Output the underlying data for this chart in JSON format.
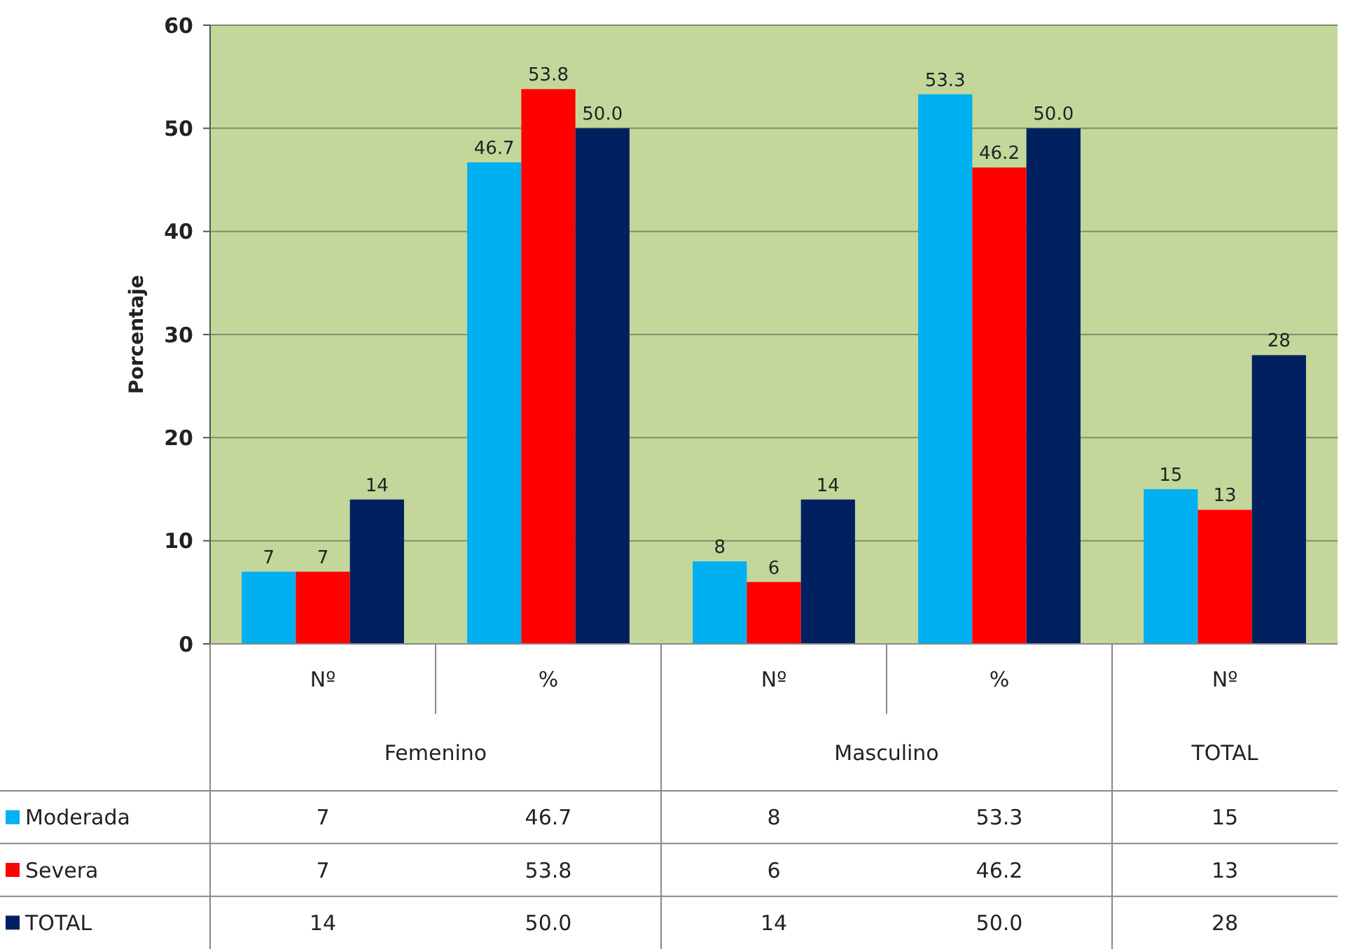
{
  "chart_data": {
    "type": "bar",
    "ylabel": "Porcentaje",
    "categories": [
      "Nº",
      "%",
      "Nº",
      "%",
      "Nº"
    ],
    "annotations": [
      "Femenino",
      "Masculino",
      "TOTAL"
    ],
    "series": [
      {
        "name": "Moderada",
        "color": "#00b0f0",
        "values": [
          7,
          46.7,
          8,
          53.3,
          15
        ],
        "value_labels": [
          "7",
          "46.7",
          "8",
          "53.3",
          "15"
        ]
      },
      {
        "name": "Severa",
        "color": "#ff0000",
        "values": [
          7,
          53.8,
          6,
          46.2,
          13
        ],
        "value_labels": [
          "7",
          "53.8",
          "6",
          "46.2",
          "13"
        ]
      },
      {
        "name": "TOTAL",
        "color": "#002060",
        "values": [
          14,
          50.0,
          14,
          50.0,
          28
        ],
        "value_labels": [
          "14",
          "50.0",
          "14",
          "50.0",
          "28"
        ]
      }
    ],
    "ylim": [
      0,
      60
    ],
    "yticks": [
      0,
      10,
      20,
      30,
      40,
      50,
      60
    ],
    "grid": "y",
    "legend": "bottom"
  }
}
